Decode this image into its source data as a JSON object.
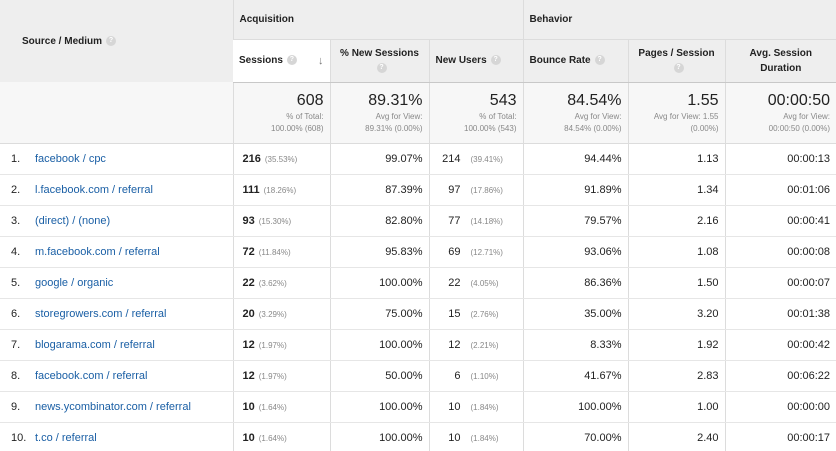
{
  "header": {
    "source_medium": "Source / Medium",
    "acquisition": "Acquisition",
    "behavior": "Behavior",
    "sessions": "Sessions",
    "new_sessions": "% New Sessions",
    "new_users": "New Users",
    "bounce_rate": "Bounce Rate",
    "pages_session": "Pages / Session",
    "avg_duration": "Avg. Session Duration",
    "help_glyph": "?",
    "sort_glyph": "↓"
  },
  "totals": {
    "sessions": {
      "value": "608",
      "sub1": "% of Total:",
      "sub2": "100.00% (608)"
    },
    "new_sessions": {
      "value": "89.31%",
      "sub1": "Avg for View:",
      "sub2": "89.31% (0.00%)"
    },
    "new_users": {
      "value": "543",
      "sub1": "% of Total:",
      "sub2": "100.00% (543)"
    },
    "bounce_rate": {
      "value": "84.54%",
      "sub1": "Avg for View:",
      "sub2": "84.54% (0.00%)"
    },
    "pages_session": {
      "value": "1.55",
      "sub1": "Avg for View: 1.55",
      "sub2": "(0.00%)"
    },
    "avg_duration": {
      "value": "00:00:50",
      "sub1": "Avg for View:",
      "sub2": "00:00:50 (0.00%)"
    }
  },
  "rows": [
    {
      "idx": "1.",
      "source": "facebook / cpc",
      "sessions": "216",
      "sessions_pct": "(35.53%)",
      "new_sessions": "99.07%",
      "new_users": "214",
      "new_users_pct": "(39.41%)",
      "bounce": "94.44%",
      "pps": "1.13",
      "dur": "00:00:13"
    },
    {
      "idx": "2.",
      "source": "l.facebook.com / referral",
      "sessions": "111",
      "sessions_pct": "(18.26%)",
      "new_sessions": "87.39%",
      "new_users": "97",
      "new_users_pct": "(17.86%)",
      "bounce": "91.89%",
      "pps": "1.34",
      "dur": "00:01:06"
    },
    {
      "idx": "3.",
      "source": "(direct) / (none)",
      "sessions": "93",
      "sessions_pct": "(15.30%)",
      "new_sessions": "82.80%",
      "new_users": "77",
      "new_users_pct": "(14.18%)",
      "bounce": "79.57%",
      "pps": "2.16",
      "dur": "00:00:41"
    },
    {
      "idx": "4.",
      "source": "m.facebook.com / referral",
      "sessions": "72",
      "sessions_pct": "(11.84%)",
      "new_sessions": "95.83%",
      "new_users": "69",
      "new_users_pct": "(12.71%)",
      "bounce": "93.06%",
      "pps": "1.08",
      "dur": "00:00:08"
    },
    {
      "idx": "5.",
      "source": "google / organic",
      "sessions": "22",
      "sessions_pct": "(3.62%)",
      "new_sessions": "100.00%",
      "new_users": "22",
      "new_users_pct": "(4.05%)",
      "bounce": "86.36%",
      "pps": "1.50",
      "dur": "00:00:07"
    },
    {
      "idx": "6.",
      "source": "storegrowers.com / referral",
      "sessions": "20",
      "sessions_pct": "(3.29%)",
      "new_sessions": "75.00%",
      "new_users": "15",
      "new_users_pct": "(2.76%)",
      "bounce": "35.00%",
      "pps": "3.20",
      "dur": "00:01:38"
    },
    {
      "idx": "7.",
      "source": "blogarama.com / referral",
      "sessions": "12",
      "sessions_pct": "(1.97%)",
      "new_sessions": "100.00%",
      "new_users": "12",
      "new_users_pct": "(2.21%)",
      "bounce": "8.33%",
      "pps": "1.92",
      "dur": "00:00:42"
    },
    {
      "idx": "8.",
      "source": "facebook.com / referral",
      "sessions": "12",
      "sessions_pct": "(1.97%)",
      "new_sessions": "50.00%",
      "new_users": "6",
      "new_users_pct": "(1.10%)",
      "bounce": "41.67%",
      "pps": "2.83",
      "dur": "00:06:22"
    },
    {
      "idx": "9.",
      "source": "news.ycombinator.com / referral",
      "sessions": "10",
      "sessions_pct": "(1.64%)",
      "new_sessions": "100.00%",
      "new_users": "10",
      "new_users_pct": "(1.84%)",
      "bounce": "100.00%",
      "pps": "1.00",
      "dur": "00:00:00"
    },
    {
      "idx": "10.",
      "source": "t.co / referral",
      "sessions": "10",
      "sessions_pct": "(1.64%)",
      "new_sessions": "100.00%",
      "new_users": "10",
      "new_users_pct": "(1.84%)",
      "bounce": "70.00%",
      "pps": "2.40",
      "dur": "00:00:17"
    }
  ]
}
